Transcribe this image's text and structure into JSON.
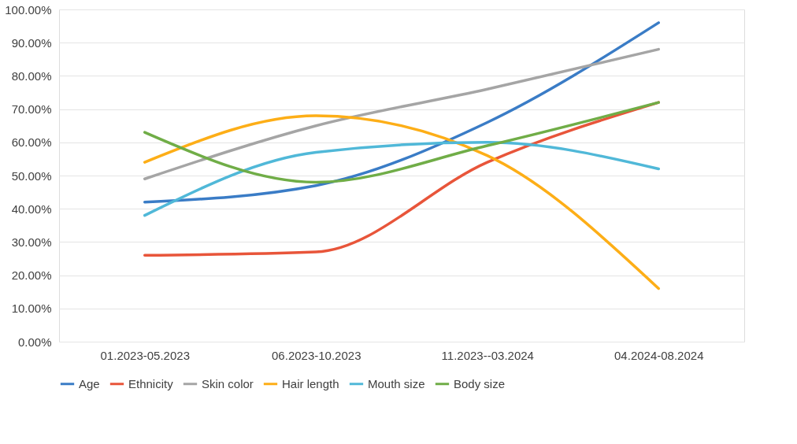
{
  "chart_data": {
    "type": "line",
    "categories": [
      "01.2023-05.2023",
      "06.2023-10.2023",
      "11.2023--03.2024",
      "04.2024-08.2024"
    ],
    "series": [
      {
        "name": "Age",
        "color": "#3a7cc6",
        "values": [
          42,
          47,
          66,
          96
        ]
      },
      {
        "name": "Ethnicity",
        "color": "#e8553a",
        "values": [
          26,
          27,
          54,
          72
        ]
      },
      {
        "name": "Skin color",
        "color": "#a5a5a5",
        "values": [
          49,
          65,
          76,
          88
        ]
      },
      {
        "name": "Hair length",
        "color": "#fdae17",
        "values": [
          54,
          68,
          56,
          16
        ]
      },
      {
        "name": "Mouth size",
        "color": "#50b8d8",
        "values": [
          38,
          57,
          60,
          52
        ]
      },
      {
        "name": "Body size",
        "color": "#70ad47",
        "values": [
          63,
          48,
          59,
          72
        ]
      }
    ],
    "ylim": [
      0,
      100
    ],
    "yticks": [
      {
        "value": 0,
        "label": "0.00%"
      },
      {
        "value": 10,
        "label": "10.00%"
      },
      {
        "value": 20,
        "label": "20.00%"
      },
      {
        "value": 30,
        "label": "30.00%"
      },
      {
        "value": 40,
        "label": "40.00%"
      },
      {
        "value": 50,
        "label": "50.00%"
      },
      {
        "value": 60,
        "label": "60.00%"
      },
      {
        "value": 70,
        "label": "70.00%"
      },
      {
        "value": 80,
        "label": "80.00%"
      },
      {
        "value": 90,
        "label": "90.00%"
      },
      {
        "value": 100,
        "label": "100.00%"
      }
    ],
    "grid": "y",
    "legend": "bottom",
    "marker": "none",
    "line_style": "solid"
  }
}
